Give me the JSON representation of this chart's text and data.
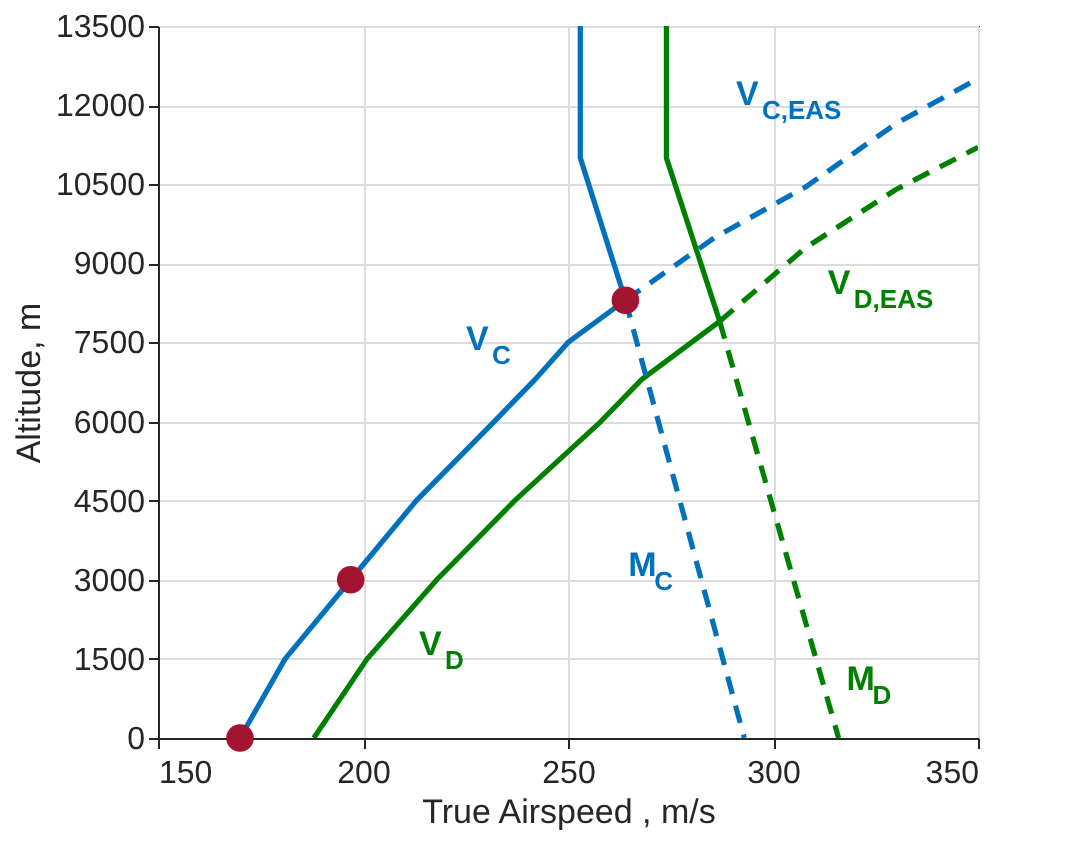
{
  "chart_data": {
    "type": "line",
    "xlabel": "True Airspeed , m/s",
    "ylabel": "Altitude, m",
    "xlim": [
      150,
      350
    ],
    "ylim": [
      0,
      13500
    ],
    "xticks": [
      150,
      200,
      250,
      300,
      350
    ],
    "yticks": [
      0,
      1500,
      3000,
      4500,
      6000,
      7500,
      9000,
      10500,
      12000,
      13500
    ],
    "grid": true,
    "series": [
      {
        "name": "V$_{C}$",
        "color": "#0072bd",
        "line_style": "solid",
        "x": [
          170,
          181,
          197,
          213,
          232,
          242,
          250,
          264
        ],
        "values": [
          0,
          1500,
          3000,
          4500,
          6000,
          6800,
          7500,
          8300
        ]
      },
      {
        "name": "V$_{C,EAS}$",
        "color": "#0072bd",
        "line_style": "dashed",
        "x": [
          264,
          286,
          308,
          330,
          350
        ],
        "values": [
          8300,
          9500,
          10450,
          11650,
          12500
        ]
      },
      {
        "name": "V$_{D}$",
        "color": "#008000",
        "line_style": "solid",
        "x": [
          188,
          201,
          218,
          237,
          258,
          268,
          287
        ],
        "values": [
          0,
          1500,
          3000,
          4500,
          6000,
          6800,
          7900
        ]
      },
      {
        "name": "V$_{D,EAS}$",
        "color": "#008000",
        "line_style": "dashed",
        "x": [
          287,
          308,
          330,
          350
        ],
        "values": [
          7900,
          9300,
          10400,
          11200
        ]
      },
      {
        "color": "#0072bd",
        "line_style": "solid",
        "x": [
          253,
          253,
          264
        ],
        "values": [
          13500,
          11000,
          8300
        ]
      },
      {
        "name": "M$_{C}$",
        "color": "#0072bd",
        "line_style": "dashed",
        "x": [
          264,
          293
        ],
        "values": [
          8300,
          0
        ]
      },
      {
        "color": "#008000",
        "line_style": "solid",
        "x": [
          274,
          274,
          287
        ],
        "values": [
          13500,
          11000,
          7900
        ]
      },
      {
        "name": "M$_{D}$",
        "color": "#008000",
        "line_style": "dashed",
        "x": [
          287,
          316
        ],
        "values": [
          7900,
          0
        ]
      },
      {
        "type": "scatter",
        "marker": "circle",
        "color": "#a2142f",
        "x": [
          170,
          197,
          264
        ],
        "values": [
          0,
          3000,
          8300
        ]
      }
    ]
  }
}
